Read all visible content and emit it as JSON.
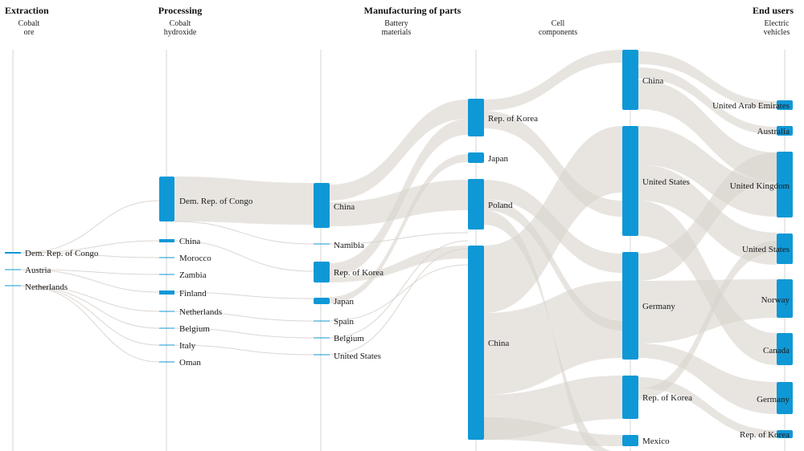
{
  "stages": [
    {
      "id": "extraction",
      "title": "Extraction",
      "subtitle": [
        "Cobalt",
        "ore"
      ]
    },
    {
      "id": "processing",
      "title": "Processing",
      "subtitle": [
        "Cobalt",
        "hydroxide"
      ]
    },
    {
      "id": "battery",
      "title": "Manufacturing of parts",
      "subtitle": [
        "Battery",
        "materials"
      ]
    },
    {
      "id": "cell",
      "title": "",
      "subtitle": [
        "Cell",
        "components"
      ]
    },
    {
      "id": "ev",
      "title": "End users",
      "subtitle": [
        "Electric",
        "vehicles"
      ]
    }
  ],
  "nodes": {
    "extraction": [
      "Dem. Rep. of Congo",
      "Austria",
      "Netherlands"
    ],
    "processing": [
      "Dem. Rep. of Congo",
      "China",
      "Morocco",
      "Zambia",
      "Finland",
      "Netherlands",
      "Belgium",
      "Italy",
      "Oman"
    ],
    "battery": [
      "China",
      "Namibia",
      "Rep. of Korea",
      "Japan",
      "Spain",
      "Belgium",
      "United States"
    ],
    "cell": [
      "Rep. of Korea",
      "Japan",
      "Poland",
      "China"
    ],
    "components": [
      "China",
      "United States",
      "Germany",
      "Rep. of Korea",
      "Mexico"
    ],
    "ev": [
      "United Arab Emirates",
      "Australia",
      "United Kingdom",
      "United States",
      "Norway",
      "Canada",
      "Germany",
      "Rep. of Korea"
    ]
  },
  "colors": {
    "node": "#0f98d6",
    "flow": "#d8d2cc",
    "guide": "#dcdcdc"
  }
}
